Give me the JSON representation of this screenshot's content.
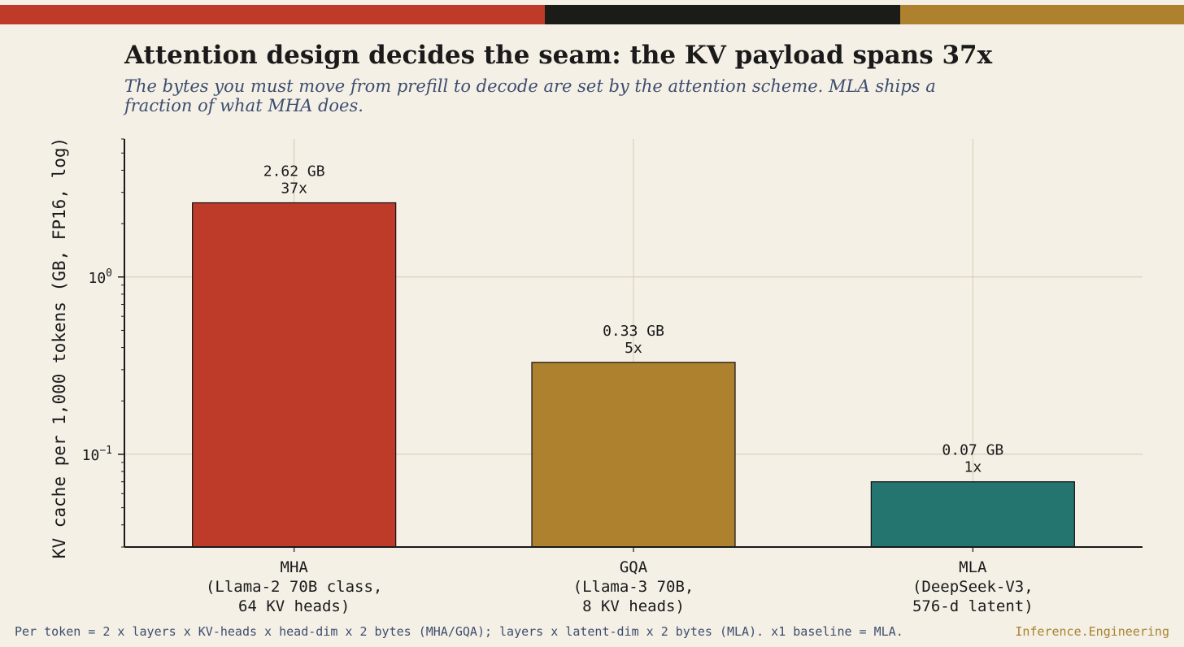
{
  "colors": {
    "background": "#f4f0e6",
    "stripe": [
      "#bd3b28",
      "#1b1b17",
      "#ae812f"
    ],
    "grid": "#d6cab1",
    "text": "#1a1a1a",
    "subtitle": "#3d4d6e",
    "brand": "#a8822d"
  },
  "header": {
    "title": "Attention design decides the seam: the KV payload spans 37x",
    "subtitle": "The bytes you must move from prefill to decode are set by the attention scheme. MLA ships a fraction of what MHA does."
  },
  "footer": {
    "note": "Per token = 2 x layers x KV-heads x head-dim x 2 bytes (MHA/GQA); layers x latent-dim x 2 bytes (MLA). x1 baseline = MLA.",
    "brand": "Inference.Engineering"
  },
  "chart_data": {
    "type": "bar",
    "title": "Attention design decides the seam: the KV payload spans 37x",
    "ylabel": "KV cache per 1,000 tokens  (GB, FP16, log)",
    "xlabel": "",
    "yscale": "log",
    "ylim": [
      0.03,
      6
    ],
    "yticks": [
      {
        "value": 1,
        "label_base": "10",
        "label_exp": "0"
      },
      {
        "value": 0.1,
        "label_base": "10",
        "label_exp": "−1"
      }
    ],
    "grid": true,
    "bars": [
      {
        "category": [
          "MHA",
          "(Llama-2 70B class,",
          "64 KV heads)"
        ],
        "value": 2.62,
        "value_label": "2.62 GB",
        "ratio_label": "37x",
        "color": "#bd3b28"
      },
      {
        "category": [
          "GQA",
          "(Llama-3 70B,",
          "8 KV heads)"
        ],
        "value": 0.33,
        "value_label": "0.33 GB",
        "ratio_label": "5x",
        "color": "#ae812f"
      },
      {
        "category": [
          "MLA",
          "(DeepSeek-V3,",
          "576-d latent)"
        ],
        "value": 0.07,
        "value_label": "0.07 GB",
        "ratio_label": "1x",
        "color": "#247570"
      }
    ]
  }
}
